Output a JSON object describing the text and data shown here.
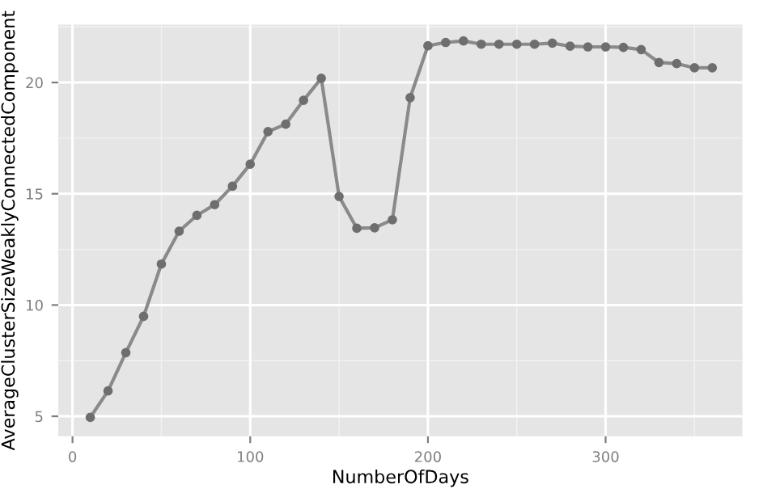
{
  "chart_data": {
    "type": "line",
    "xlabel": "NumberOfDays",
    "ylabel": "AverageClusterSizeWeaklyConnectedComponent",
    "x": [
      10,
      20,
      30,
      40,
      50,
      60,
      70,
      80,
      90,
      100,
      110,
      120,
      130,
      140,
      150,
      160,
      170,
      180,
      190,
      200,
      210,
      220,
      230,
      240,
      250,
      260,
      270,
      280,
      290,
      300,
      310,
      320,
      330,
      340,
      350,
      360
    ],
    "series": [
      {
        "color": "#8a8a8a",
        "values": [
          4.95,
          6.14,
          7.86,
          9.49,
          11.84,
          13.32,
          14.03,
          14.51,
          15.34,
          16.33,
          17.79,
          18.13,
          19.2,
          20.19,
          14.88,
          13.45,
          13.47,
          13.83,
          19.32,
          21.65,
          21.8,
          21.87,
          21.72,
          21.72,
          21.72,
          21.72,
          21.77,
          21.63,
          21.6,
          21.6,
          21.58,
          21.48,
          20.9,
          20.85,
          20.66,
          20.66
        ]
      }
    ],
    "xlim": [
      -8,
      377
    ],
    "ylim": [
      4.1,
      22.6
    ],
    "xticks": [
      0,
      100,
      200,
      300
    ],
    "yticks": [
      5,
      10,
      15,
      20
    ],
    "grid": true,
    "marker": "circle",
    "line_style": "solid"
  }
}
